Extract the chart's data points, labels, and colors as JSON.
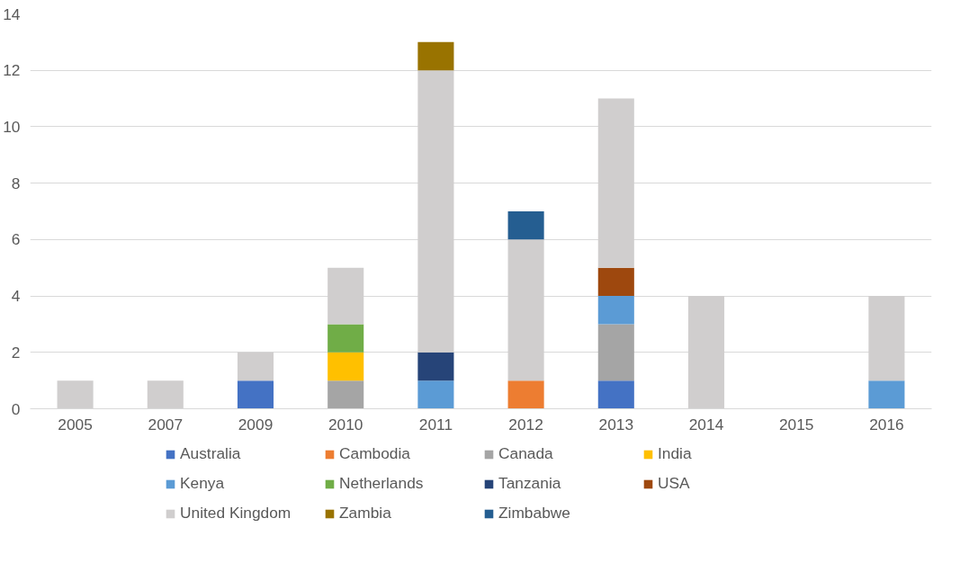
{
  "chart_data": {
    "type": "bar",
    "stacked": true,
    "categories": [
      "2005",
      "2007",
      "2009",
      "2010",
      "2011",
      "2012",
      "2013",
      "2014",
      "2015",
      "2016"
    ],
    "ylim": [
      0,
      14
    ],
    "yticks": [
      0,
      2,
      4,
      6,
      8,
      10,
      12,
      14
    ],
    "grid": "y",
    "legend": "bottom",
    "series": [
      {
        "name": "Australia",
        "color": "#4472c4",
        "values": [
          null,
          null,
          1,
          null,
          null,
          null,
          1,
          null,
          null,
          null
        ]
      },
      {
        "name": "Cambodia",
        "color": "#ed7d31",
        "values": [
          null,
          null,
          null,
          null,
          null,
          1,
          null,
          null,
          null,
          null
        ]
      },
      {
        "name": "Canada",
        "color": "#a5a5a5",
        "values": [
          null,
          null,
          null,
          1,
          null,
          null,
          2,
          null,
          null,
          null
        ]
      },
      {
        "name": "India",
        "color": "#ffc000",
        "values": [
          null,
          null,
          null,
          1,
          null,
          null,
          null,
          null,
          null,
          null
        ]
      },
      {
        "name": "Kenya",
        "color": "#5b9bd5",
        "values": [
          null,
          null,
          null,
          null,
          1,
          null,
          1,
          null,
          null,
          1
        ]
      },
      {
        "name": "Netherlands",
        "color": "#70ad47",
        "values": [
          null,
          null,
          null,
          1,
          null,
          null,
          null,
          null,
          null,
          null
        ]
      },
      {
        "name": "Tanzania",
        "color": "#264478",
        "values": [
          null,
          null,
          null,
          null,
          1,
          null,
          null,
          null,
          null,
          null
        ]
      },
      {
        "name": "USA",
        "color": "#9e480e",
        "values": [
          null,
          null,
          null,
          null,
          null,
          null,
          1,
          null,
          null,
          null
        ]
      },
      {
        "name": "United Kingdom",
        "color": "#d0cece",
        "values": [
          1,
          1,
          1,
          2,
          10,
          5,
          6,
          4,
          null,
          3
        ]
      },
      {
        "name": "Zambia",
        "color": "#997300",
        "values": [
          null,
          null,
          null,
          null,
          1,
          null,
          null,
          null,
          null,
          null
        ]
      },
      {
        "name": "Zimbabwe",
        "color": "#255e91",
        "values": [
          null,
          null,
          null,
          null,
          null,
          1,
          null,
          null,
          null,
          null
        ]
      }
    ]
  }
}
